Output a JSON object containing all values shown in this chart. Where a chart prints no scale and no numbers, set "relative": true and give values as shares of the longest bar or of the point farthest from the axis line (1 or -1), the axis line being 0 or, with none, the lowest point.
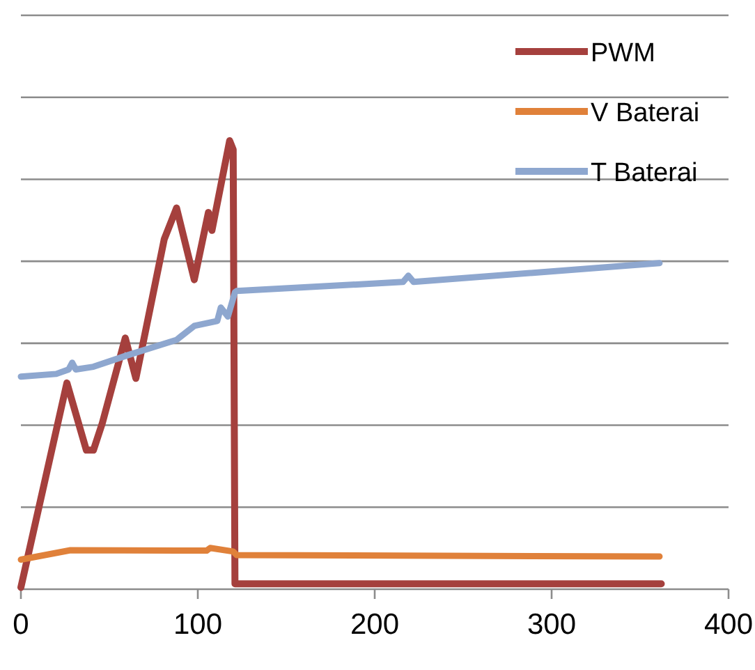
{
  "chart_data": {
    "type": "line",
    "relative": true,
    "xlim": [
      0,
      400
    ],
    "xticks": [
      0,
      100,
      200,
      300,
      400
    ],
    "grid": "y",
    "legend": "top right",
    "series": [
      {
        "name": "PWM",
        "color": "#a5403d",
        "x": [
          0,
          26,
          37,
          41,
          46,
          59,
          65,
          81,
          88,
          98,
          106,
          108,
          118,
          120,
          121,
          362
        ],
        "values": [
          0.004,
          0.46,
          0.31,
          0.31,
          0.37,
          0.56,
          0.47,
          0.78,
          0.85,
          0.69,
          0.84,
          0.8,
          1,
          0.98,
          0.012,
          0.012
        ]
      },
      {
        "name": "V Baterai",
        "color": "#e0813a",
        "x": [
          0,
          28,
          105,
          107,
          120,
          122,
          361
        ],
        "values": [
          0.066,
          0.087,
          0.086,
          0.092,
          0.084,
          0.076,
          0.073
        ]
      },
      {
        "name": "T Baterai",
        "color": "#8ea7cf",
        "x": [
          0,
          20,
          27,
          29,
          31,
          41,
          59,
          88,
          98,
          111,
          113,
          117,
          121,
          122,
          216,
          219,
          222,
          361
        ],
        "values": [
          0.474,
          0.48,
          0.49,
          0.505,
          0.49,
          0.496,
          0.52,
          0.556,
          0.587,
          0.598,
          0.628,
          0.608,
          0.662,
          0.665,
          0.685,
          0.699,
          0.685,
          0.727
        ]
      }
    ]
  }
}
